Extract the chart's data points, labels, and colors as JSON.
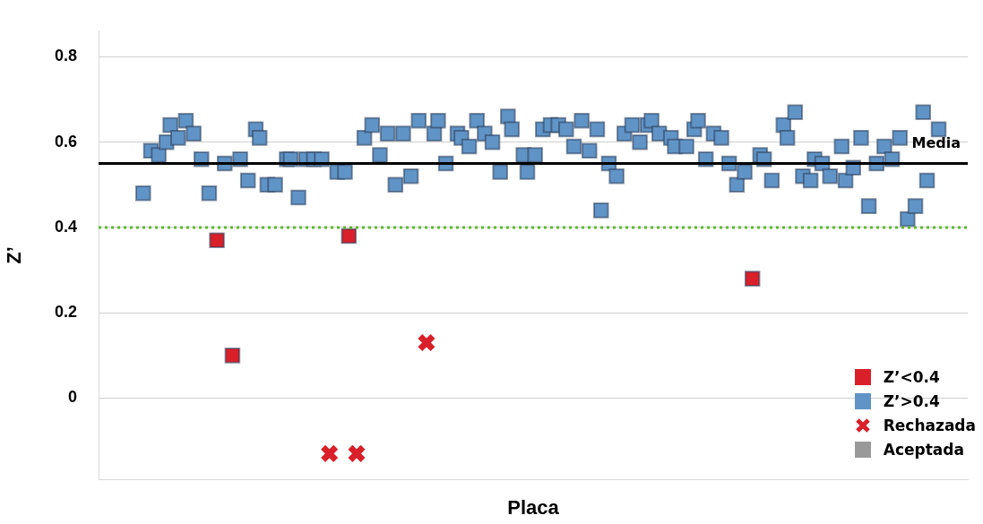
{
  "chart_data": {
    "type": "scatter",
    "xlabel": "Placa",
    "ylabel": "Z’",
    "categories": [
      null,
      null,
      null,
      null,
      null,
      null,
      null,
      null,
      null,
      null,
      null,
      null,
      null,
      null,
      null,
      null,
      null,
      null,
      null,
      null,
      null,
      null,
      null,
      null,
      null,
      null,
      null,
      null,
      null,
      null,
      null,
      null,
      null,
      null,
      null,
      null,
      null,
      null,
      null,
      null,
      null,
      null,
      null,
      null,
      null,
      null,
      null,
      null,
      null,
      null,
      null,
      null,
      null,
      null,
      null,
      null,
      null,
      null,
      null,
      null,
      null,
      null,
      null,
      null,
      null,
      null,
      null,
      null,
      null,
      null,
      null,
      null,
      null,
      null,
      null,
      null,
      null,
      null,
      null,
      null,
      null,
      null,
      null,
      null,
      null,
      null,
      null,
      null,
      null,
      null,
      null,
      null,
      null,
      null,
      null,
      null,
      null,
      null,
      null,
      null,
      null,
      null,
      null,
      null,
      null,
      null,
      null,
      null,
      null,
      null,
      null,
      null,
      null,
      null,
      null,
      null,
      null,
      null,
      null,
      null,
      null,
      null,
      null,
      null,
      null,
      null,
      null,
      null,
      null,
      null,
      null,
      null,
      null,
      null,
      null,
      null,
      null,
      null,
      null,
      null,
      null,
      null,
      null,
      null,
      null,
      null,
      null,
      null,
      null,
      null,
      null,
      null,
      null,
      null,
      null,
      null,
      null,
      null,
      null,
      null,
      null,
      null,
      null,
      null,
      null,
      null,
      null,
      null,
      null,
      null,
      null,
      null,
      null,
      null,
      null,
      null,
      null,
      null,
      null,
      null,
      null,
      null,
      null,
      null,
      null,
      null,
      null,
      null,
      null,
      null,
      null,
      null,
      null,
      null,
      null,
      null,
      null,
      null,
      null,
      null,
      null,
      null,
      null,
      null,
      null,
      null,
      null,
      null,
      null,
      null,
      null,
      null,
      null,
      null,
      null,
      null,
      null,
      null,
      null,
      null,
      null,
      null,
      null,
      null
    ],
    "ylim": [
      -0.19,
      0.86
    ],
    "yticks": [
      0,
      0.2,
      0.4,
      0.6,
      0.8
    ],
    "grid": "y",
    "legend": "bottom right",
    "series": [
      {
        "name": "Z’<0.4",
        "color": "#d9202a",
        "marker": "square",
        "values": [
          null,
          null,
          null,
          null,
          null,
          null,
          null,
          null,
          null,
          null,
          null,
          null,
          null,
          null,
          null,
          null,
          null,
          null,
          null,
          null,
          null,
          null,
          null,
          null,
          null,
          null,
          null,
          null,
          null,
          null,
          0.37,
          null,
          null,
          null,
          0.1,
          null,
          null,
          null,
          null,
          null,
          null,
          null,
          null,
          null,
          null,
          null,
          null,
          null,
          null,
          null,
          null,
          null,
          null,
          null,
          null,
          null,
          null,
          null,
          null,
          null,
          null,
          null,
          null,
          null,
          0.38,
          null,
          null,
          null,
          null,
          null,
          null,
          null,
          null,
          null,
          null,
          null,
          null,
          null,
          null,
          null,
          null,
          null,
          null,
          null,
          null,
          null,
          null,
          null,
          null,
          null,
          null,
          null,
          null,
          null,
          null,
          null,
          null,
          null,
          null,
          null,
          null,
          null,
          null,
          null,
          null,
          null,
          null,
          null,
          null,
          null,
          null,
          null,
          null,
          null,
          null,
          null,
          null,
          null,
          null,
          null,
          null,
          null,
          null,
          null,
          null,
          null,
          null,
          null,
          null,
          null,
          null,
          null,
          null,
          null,
          null,
          null,
          null,
          null,
          null,
          null,
          null,
          null,
          null,
          null,
          null,
          null,
          null,
          null,
          null,
          null,
          null,
          null,
          null,
          null,
          null,
          null,
          null,
          null,
          null,
          null,
          null,
          null,
          null,
          null,
          null,
          null,
          null,
          null,
          0.28,
          null,
          null,
          null,
          null,
          null,
          null,
          null,
          null,
          null,
          null,
          null,
          null,
          null,
          null,
          null,
          null,
          null,
          null,
          null,
          null,
          null,
          null,
          null,
          null,
          null,
          null,
          null,
          null,
          null,
          null,
          null,
          null,
          null,
          null,
          null,
          null,
          null,
          null,
          null,
          null,
          null,
          null,
          null,
          null,
          null,
          null,
          null,
          null,
          null,
          null,
          null,
          null,
          null,
          null,
          null
        ]
      },
      {
        "name": "Z’>0.4",
        "color": "#6194c6",
        "marker": "square",
        "values": [
          null,
          null,
          null,
          null,
          null,
          null,
          null,
          null,
          null,
          null,
          null,
          0.48,
          null,
          0.58,
          null,
          0.57,
          null,
          0.6,
          0.64,
          null,
          0.61,
          null,
          0.65,
          null,
          0.62,
          null,
          0.56,
          null,
          0.48,
          null,
          null,
          null,
          0.55,
          null,
          null,
          null,
          0.56,
          null,
          0.51,
          null,
          0.63,
          0.61,
          null,
          0.5,
          null,
          0.5,
          null,
          null,
          0.56,
          0.56,
          null,
          0.47,
          null,
          0.56,
          null,
          0.56,
          null,
          0.56,
          null,
          null,
          null,
          0.53,
          null,
          0.53,
          null,
          null,
          null,
          null,
          0.61,
          null,
          0.64,
          null,
          0.57,
          null,
          0.62,
          null,
          0.5,
          null,
          0.62,
          null,
          0.52,
          null,
          0.65,
          null,
          null,
          null,
          0.62,
          0.65,
          null,
          0.55,
          null,
          null,
          0.62,
          0.61,
          null,
          0.59,
          null,
          0.65,
          null,
          0.62,
          null,
          0.6,
          null,
          0.53,
          null,
          0.66,
          0.63,
          null,
          null,
          0.57,
          0.53,
          null,
          0.57,
          null,
          0.63,
          null,
          0.64,
          null,
          0.64,
          null,
          0.63,
          null,
          0.59,
          null,
          0.65,
          null,
          0.58,
          null,
          0.63,
          0.44,
          null,
          0.55,
          null,
          0.52,
          null,
          0.62,
          null,
          0.64,
          null,
          0.6,
          null,
          0.64,
          0.65,
          null,
          0.62,
          null,
          null,
          0.61,
          0.59,
          null,
          null,
          0.59,
          null,
          0.63,
          0.65,
          null,
          0.56,
          null,
          0.62,
          null,
          0.61,
          null,
          0.55,
          null,
          0.5,
          null,
          0.53,
          null,
          null,
          null,
          0.57,
          0.56,
          null,
          0.51,
          null,
          null,
          0.64,
          0.61,
          null,
          0.67,
          null,
          0.52,
          null,
          0.51,
          0.56,
          null,
          0.55,
          null,
          0.52,
          null,
          null,
          0.59,
          0.51,
          null,
          0.54,
          null,
          0.61,
          null,
          0.45,
          null,
          0.55,
          null,
          0.59,
          null,
          0.56,
          null,
          0.61,
          null,
          0.42,
          null,
          0.45,
          null,
          0.67,
          0.51,
          null,
          null,
          0.63,
          null,
          null,
          null,
          null,
          null,
          null,
          null
        ]
      },
      {
        "name": "Rechazada",
        "color": "#d9202a",
        "marker": "cross",
        "values": [
          null,
          null,
          null,
          null,
          null,
          null,
          null,
          null,
          null,
          null,
          null,
          null,
          null,
          null,
          null,
          null,
          null,
          null,
          null,
          null,
          null,
          null,
          null,
          null,
          null,
          null,
          null,
          null,
          null,
          null,
          null,
          null,
          null,
          null,
          null,
          null,
          null,
          null,
          null,
          null,
          null,
          null,
          null,
          null,
          null,
          null,
          null,
          null,
          null,
          null,
          null,
          null,
          null,
          null,
          null,
          null,
          null,
          null,
          null,
          -0.13,
          null,
          null,
          null,
          null,
          null,
          null,
          -0.13,
          null,
          null,
          null,
          null,
          null,
          null,
          null,
          null,
          null,
          null,
          null,
          null,
          null,
          null,
          null,
          null,
          null,
          0.13,
          null,
          null,
          null,
          null,
          null,
          null,
          null,
          null,
          null,
          null,
          null,
          null,
          null,
          null,
          null,
          null,
          null,
          null,
          null,
          null,
          null,
          null,
          null,
          null,
          null,
          null,
          null,
          null,
          null,
          null,
          null,
          null,
          null,
          null,
          null,
          null,
          null,
          null,
          null,
          null,
          null,
          null,
          null,
          null,
          null,
          null,
          null,
          null,
          null,
          null,
          null,
          null,
          null,
          null,
          null,
          null,
          null,
          null,
          null,
          null,
          null,
          null,
          null,
          null,
          null,
          null,
          null,
          null,
          null,
          null,
          null,
          null,
          null,
          null,
          null,
          null,
          null,
          null,
          null,
          null,
          null,
          null,
          null,
          null,
          null,
          null,
          null,
          null,
          null,
          null,
          null,
          null,
          null,
          null,
          null,
          null,
          null,
          null,
          null,
          null,
          null,
          null,
          null,
          null,
          null,
          null,
          null,
          null,
          null,
          null,
          null,
          null,
          null,
          null,
          null,
          null,
          null,
          null,
          null,
          null,
          null,
          null,
          null,
          null,
          null,
          null,
          null,
          null,
          null,
          null,
          null,
          null,
          null,
          null,
          null,
          null,
          null,
          null,
          null
        ]
      }
    ],
    "ref_lines": [
      {
        "axis": "y",
        "value": 0.55,
        "label": "Media",
        "color": "#000000",
        "line_style": "solid"
      },
      {
        "axis": "y",
        "value": 0.4,
        "label": null,
        "color": "#5cb82e",
        "line_style": "dotted"
      }
    ],
    "annotations": [
      "Aceptada"
    ]
  }
}
